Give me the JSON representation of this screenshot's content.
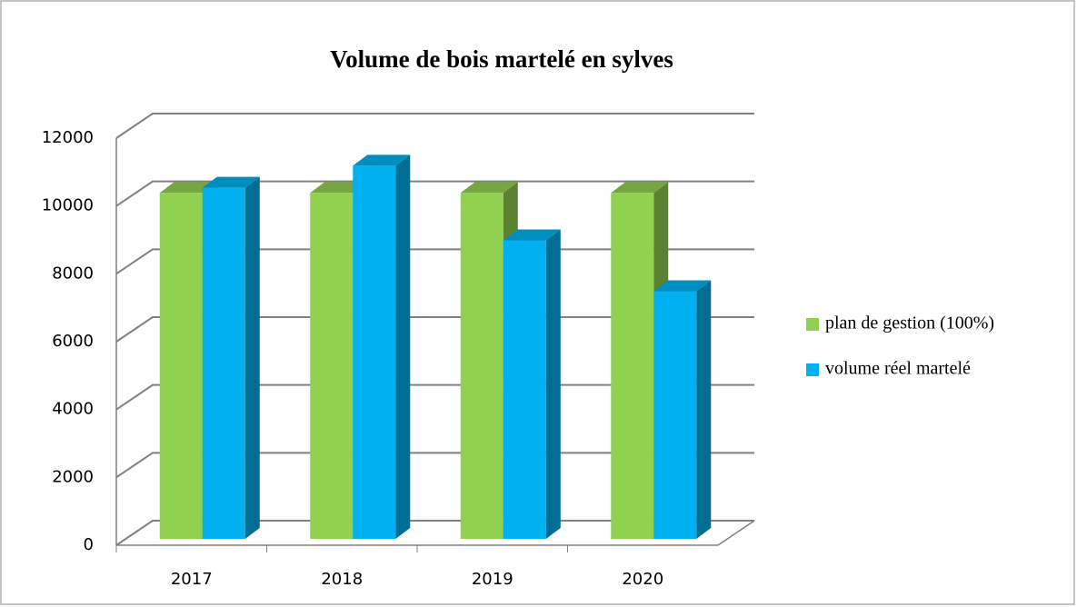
{
  "chart_data": {
    "type": "bar3d",
    "title": "Volume de bois martelé en sylves",
    "categories": [
      "2017",
      "2018",
      "2019",
      "2020"
    ],
    "series": [
      {
        "name": "plan de gestion (100%)",
        "color": "#92d050",
        "values": [
          10200,
          10200,
          10200,
          10200
        ]
      },
      {
        "name": "volume réel martelé",
        "color": "#00b0f0",
        "values": [
          10350,
          11000,
          8800,
          7300
        ]
      }
    ],
    "ylim": [
      0,
      12000
    ],
    "yticks": [
      0,
      2000,
      4000,
      6000,
      8000,
      10000,
      12000
    ],
    "grid": true,
    "legend": "right"
  }
}
